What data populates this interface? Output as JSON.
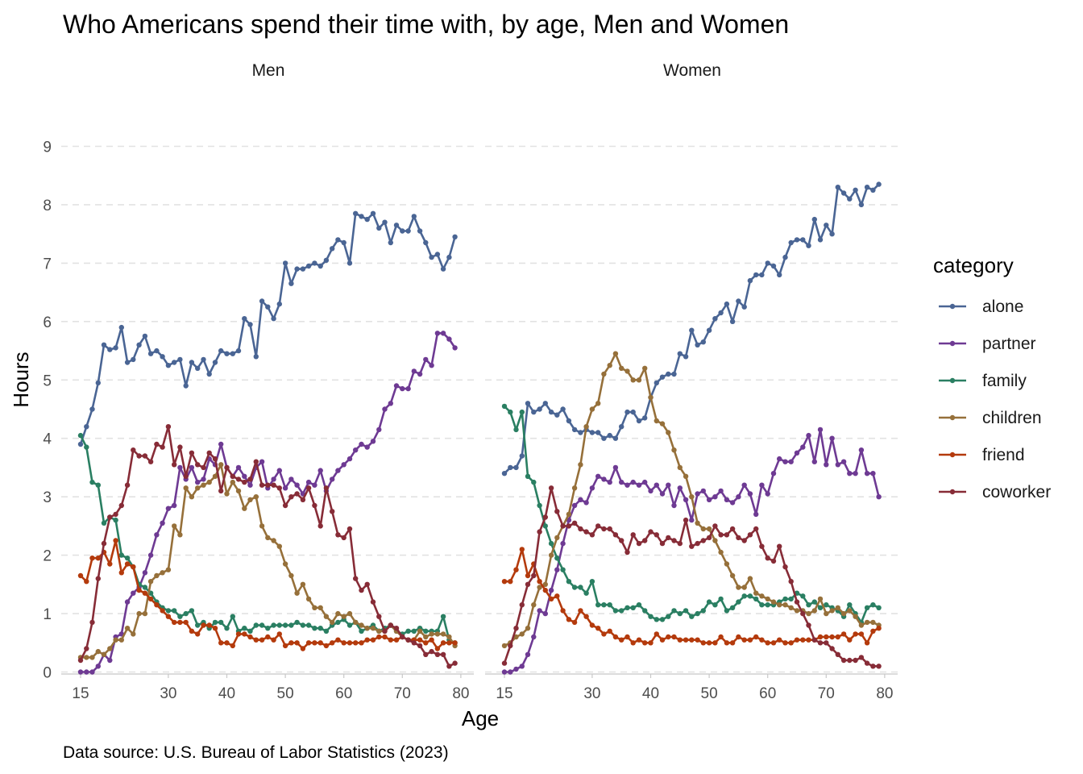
{
  "chart_data": {
    "type": "line",
    "title": "Who Americans spend their time with, by age, Men and Women",
    "xlabel": "Age",
    "ylabel": "Hours",
    "caption": "Data source: U.S. Bureau of Labor Statistics (2023)",
    "legend_title": "category",
    "legend_position": "right",
    "grid": "horizontal dashed",
    "xlim": [
      15,
      79
    ],
    "ylim": [
      0,
      9
    ],
    "x_ticks": [
      15,
      30,
      40,
      50,
      60,
      70,
      80
    ],
    "y_ticks": [
      0,
      1,
      2,
      3,
      4,
      5,
      6,
      7,
      8,
      9
    ],
    "x": [
      15,
      16,
      17,
      18,
      19,
      20,
      21,
      22,
      23,
      24,
      25,
      26,
      27,
      28,
      29,
      30,
      31,
      32,
      33,
      34,
      35,
      36,
      37,
      38,
      39,
      40,
      41,
      42,
      43,
      44,
      45,
      46,
      47,
      48,
      49,
      50,
      51,
      52,
      53,
      54,
      55,
      56,
      57,
      58,
      59,
      60,
      61,
      62,
      63,
      64,
      65,
      66,
      67,
      68,
      69,
      70,
      71,
      72,
      73,
      74,
      75,
      76,
      77,
      78,
      79
    ],
    "colors": {
      "alone": "#4a6594",
      "partner": "#6e3a93",
      "family": "#2a7f62",
      "children": "#96703a",
      "friend": "#b43a0c",
      "coworker": "#872c37"
    },
    "panels": [
      {
        "name": "Men",
        "series": [
          {
            "name": "alone",
            "values": [
              3.9,
              4.2,
              4.5,
              4.95,
              5.6,
              5.52,
              5.55,
              5.9,
              5.3,
              5.35,
              5.6,
              5.75,
              5.45,
              5.5,
              5.4,
              5.25,
              5.3,
              5.35,
              4.9,
              5.3,
              5.2,
              5.35,
              5.1,
              5.3,
              5.5,
              5.45,
              5.45,
              5.5,
              6.05,
              5.95,
              5.4,
              6.35,
              6.25,
              6.05,
              6.3,
              7.0,
              6.65,
              6.9,
              6.9,
              6.95,
              7.0,
              6.95,
              7.05,
              7.25,
              7.4,
              7.35,
              7.0,
              7.85,
              7.8,
              7.75,
              7.85,
              7.6,
              7.7,
              7.35,
              7.65,
              7.55,
              7.55,
              7.8,
              7.55,
              7.35,
              7.1,
              7.15,
              6.9,
              7.1,
              7.45
            ]
          },
          {
            "name": "partner",
            "values": [
              0.0,
              0.0,
              0.0,
              0.1,
              0.3,
              0.2,
              0.6,
              0.65,
              1.2,
              1.35,
              1.45,
              1.7,
              2.0,
              2.35,
              2.55,
              2.8,
              2.85,
              3.5,
              3.3,
              3.5,
              3.25,
              3.3,
              3.65,
              3.55,
              3.9,
              3.5,
              3.35,
              3.5,
              3.35,
              3.2,
              3.5,
              3.6,
              3.15,
              3.3,
              3.45,
              3.15,
              3.3,
              3.2,
              3.05,
              3.25,
              3.2,
              3.45,
              3.1,
              3.3,
              3.45,
              3.55,
              3.65,
              3.8,
              3.9,
              3.85,
              3.95,
              4.15,
              4.5,
              4.6,
              4.9,
              4.85,
              4.85,
              5.15,
              5.1,
              5.35,
              5.25,
              5.8,
              5.8,
              5.7,
              5.55
            ]
          },
          {
            "name": "family",
            "values": [
              4.05,
              3.85,
              3.25,
              3.2,
              2.55,
              2.65,
              2.6,
              2.0,
              1.95,
              1.8,
              1.5,
              1.45,
              1.35,
              1.2,
              1.1,
              1.05,
              1.05,
              0.95,
              1.0,
              1.05,
              0.8,
              0.85,
              0.75,
              0.85,
              0.85,
              0.75,
              0.95,
              0.7,
              0.75,
              0.7,
              0.8,
              0.8,
              0.75,
              0.8,
              0.8,
              0.8,
              0.8,
              0.85,
              0.8,
              0.8,
              0.75,
              0.75,
              0.7,
              0.8,
              0.85,
              0.9,
              0.8,
              0.85,
              0.7,
              0.75,
              0.8,
              0.7,
              0.75,
              0.8,
              0.7,
              0.65,
              0.7,
              0.7,
              0.75,
              0.7,
              0.7,
              0.7,
              0.95,
              0.55,
              0.5
            ]
          },
          {
            "name": "children",
            "values": [
              0.25,
              0.25,
              0.25,
              0.35,
              0.3,
              0.4,
              0.55,
              0.55,
              0.75,
              0.65,
              1.0,
              1.0,
              1.55,
              1.65,
              1.7,
              1.75,
              2.5,
              2.35,
              3.15,
              3.0,
              3.15,
              3.2,
              3.25,
              3.35,
              3.55,
              3.05,
              3.25,
              3.1,
              2.8,
              2.95,
              3.0,
              2.5,
              2.3,
              2.25,
              2.15,
              1.85,
              1.65,
              1.35,
              1.5,
              1.25,
              1.1,
              1.1,
              0.95,
              0.85,
              1.0,
              0.95,
              1.0,
              0.85,
              0.8,
              0.75,
              0.75,
              0.7,
              0.7,
              0.8,
              0.7,
              0.6,
              0.55,
              0.55,
              0.7,
              0.6,
              0.65,
              0.65,
              0.65,
              0.6,
              0.45
            ]
          },
          {
            "name": "friend",
            "values": [
              1.65,
              1.55,
              1.95,
              1.95,
              2.05,
              1.85,
              2.25,
              1.7,
              1.85,
              1.8,
              1.4,
              1.35,
              1.25,
              1.15,
              1.05,
              0.95,
              0.85,
              0.85,
              0.85,
              0.7,
              0.65,
              0.8,
              0.8,
              0.75,
              0.5,
              0.5,
              0.45,
              0.65,
              0.65,
              0.6,
              0.55,
              0.55,
              0.6,
              0.55,
              0.65,
              0.45,
              0.5,
              0.5,
              0.4,
              0.5,
              0.5,
              0.5,
              0.45,
              0.5,
              0.55,
              0.5,
              0.5,
              0.5,
              0.5,
              0.55,
              0.55,
              0.6,
              0.6,
              0.55,
              0.55,
              0.6,
              0.55,
              0.55,
              0.55,
              0.5,
              0.55,
              0.4,
              0.5,
              0.5,
              0.5
            ]
          },
          {
            "name": "coworker",
            "values": [
              0.2,
              0.4,
              0.85,
              1.6,
              2.2,
              2.65,
              2.7,
              2.85,
              3.2,
              3.8,
              3.7,
              3.7,
              3.6,
              3.9,
              3.85,
              4.2,
              3.55,
              3.85,
              3.35,
              3.75,
              3.55,
              3.5,
              3.75,
              3.65,
              3.1,
              3.5,
              3.35,
              3.3,
              3.25,
              3.3,
              3.6,
              3.2,
              3.2,
              3.2,
              3.15,
              2.85,
              3.0,
              3.05,
              2.95,
              3.15,
              2.85,
              2.5,
              3.15,
              2.75,
              2.35,
              2.3,
              2.45,
              1.6,
              1.4,
              1.5,
              1.2,
              0.95,
              0.7,
              0.8,
              0.75,
              0.6,
              0.55,
              0.5,
              0.45,
              0.3,
              0.35,
              0.3,
              0.3,
              0.1,
              0.15
            ]
          }
        ]
      },
      {
        "name": "Women",
        "series": [
          {
            "name": "alone",
            "values": [
              3.4,
              3.5,
              3.5,
              3.7,
              4.6,
              4.45,
              4.5,
              4.6,
              4.45,
              4.4,
              4.5,
              4.3,
              4.15,
              4.1,
              4.15,
              4.1,
              4.1,
              4.0,
              4.05,
              4.0,
              4.2,
              4.45,
              4.45,
              4.3,
              4.35,
              4.7,
              4.95,
              5.05,
              5.1,
              5.1,
              5.45,
              5.4,
              5.85,
              5.6,
              5.65,
              5.85,
              6.05,
              6.15,
              6.3,
              6.0,
              6.35,
              6.25,
              6.7,
              6.8,
              6.8,
              7.0,
              6.95,
              6.8,
              7.1,
              7.35,
              7.4,
              7.4,
              7.3,
              7.75,
              7.4,
              7.65,
              7.5,
              8.3,
              8.2,
              8.1,
              8.25,
              8.0,
              8.3,
              8.25,
              8.35
            ]
          },
          {
            "name": "partner",
            "values": [
              0.0,
              0.0,
              0.05,
              0.1,
              0.3,
              0.6,
              1.05,
              1.0,
              1.4,
              1.75,
              2.2,
              2.6,
              2.85,
              2.95,
              2.9,
              3.15,
              3.35,
              3.3,
              3.25,
              3.5,
              3.25,
              3.2,
              3.25,
              3.2,
              3.25,
              3.1,
              3.2,
              3.05,
              3.2,
              2.85,
              3.15,
              2.95,
              2.6,
              3.05,
              3.1,
              2.95,
              3.0,
              3.1,
              2.95,
              2.9,
              3.0,
              3.2,
              3.05,
              2.7,
              3.2,
              3.05,
              3.4,
              3.65,
              3.6,
              3.6,
              3.75,
              3.85,
              4.05,
              3.6,
              4.15,
              3.55,
              4.0,
              3.55,
              3.6,
              3.4,
              3.4,
              3.8,
              3.4,
              3.4,
              3.0
            ]
          },
          {
            "name": "family",
            "values": [
              4.55,
              4.45,
              4.15,
              4.45,
              3.35,
              3.25,
              2.85,
              2.5,
              2.2,
              1.95,
              1.75,
              1.55,
              1.45,
              1.45,
              1.35,
              1.55,
              1.15,
              1.15,
              1.15,
              1.05,
              1.05,
              1.1,
              1.1,
              1.15,
              1.05,
              0.95,
              0.9,
              0.9,
              0.95,
              1.05,
              1.0,
              1.05,
              0.95,
              1.0,
              1.05,
              1.2,
              1.15,
              1.25,
              1.05,
              1.1,
              1.2,
              1.3,
              1.3,
              1.25,
              1.15,
              1.15,
              1.15,
              1.2,
              1.25,
              1.25,
              1.35,
              1.3,
              1.15,
              1.2,
              1.1,
              1.15,
              1.1,
              1.05,
              0.95,
              1.15,
              1.0,
              0.85,
              1.1,
              1.15,
              1.1
            ]
          },
          {
            "name": "children",
            "values": [
              0.45,
              0.5,
              0.6,
              0.65,
              0.75,
              1.15,
              1.45,
              1.5,
              2.0,
              2.3,
              2.5,
              2.7,
              3.15,
              3.55,
              4.2,
              4.5,
              4.6,
              5.1,
              5.25,
              5.45,
              5.2,
              5.15,
              5.0,
              5.0,
              5.2,
              4.7,
              4.3,
              4.25,
              4.1,
              3.8,
              3.5,
              3.35,
              3.0,
              2.55,
              2.45,
              2.45,
              2.25,
              2.05,
              1.85,
              1.65,
              1.45,
              1.45,
              1.6,
              1.35,
              1.3,
              1.25,
              1.2,
              1.15,
              1.15,
              1.1,
              1.05,
              1.05,
              1.0,
              1.05,
              1.25,
              1.0,
              1.05,
              1.1,
              1.0,
              1.05,
              0.95,
              0.8,
              0.85,
              0.85,
              0.8
            ]
          },
          {
            "name": "friend",
            "values": [
              1.55,
              1.55,
              1.75,
              2.1,
              1.65,
              1.85,
              1.55,
              1.4,
              1.25,
              1.3,
              1.05,
              0.9,
              0.85,
              1.05,
              0.95,
              0.8,
              0.75,
              0.65,
              0.7,
              0.6,
              0.55,
              0.6,
              0.5,
              0.55,
              0.5,
              0.5,
              0.65,
              0.55,
              0.6,
              0.6,
              0.55,
              0.55,
              0.55,
              0.55,
              0.5,
              0.5,
              0.5,
              0.6,
              0.5,
              0.5,
              0.6,
              0.55,
              0.55,
              0.6,
              0.55,
              0.5,
              0.5,
              0.55,
              0.5,
              0.5,
              0.55,
              0.55,
              0.55,
              0.55,
              0.6,
              0.6,
              0.6,
              0.6,
              0.65,
              0.55,
              0.65,
              0.65,
              0.5,
              0.7,
              0.75
            ]
          },
          {
            "name": "coworker",
            "values": [
              0.15,
              0.45,
              0.75,
              1.15,
              1.5,
              1.65,
              2.4,
              2.65,
              3.15,
              2.75,
              2.5,
              2.5,
              2.55,
              2.45,
              2.4,
              2.35,
              2.5,
              2.45,
              2.45,
              2.35,
              2.25,
              2.05,
              2.35,
              2.2,
              2.25,
              2.4,
              2.35,
              2.2,
              2.3,
              2.25,
              2.2,
              2.6,
              2.15,
              2.2,
              2.25,
              2.3,
              2.5,
              2.35,
              2.35,
              2.45,
              2.3,
              2.25,
              2.35,
              2.45,
              2.15,
              1.95,
              1.9,
              2.15,
              1.8,
              1.55,
              1.2,
              1.0,
              0.8,
              0.55,
              0.5,
              0.5,
              0.4,
              0.3,
              0.2,
              0.2,
              0.2,
              0.25,
              0.15,
              0.1,
              0.1
            ]
          }
        ]
      }
    ]
  }
}
